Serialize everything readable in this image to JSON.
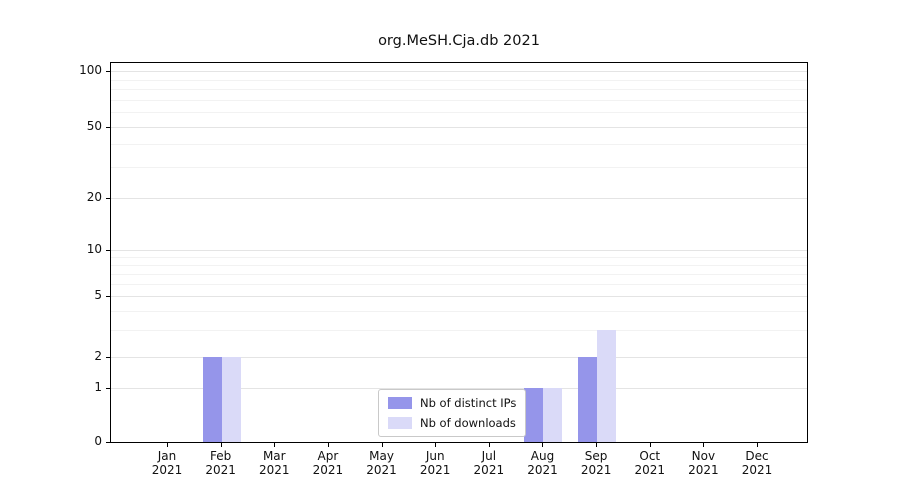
{
  "chart_data": {
    "type": "bar",
    "title": "org.MeSH.Cja.db 2021",
    "categories": [
      "Jan 2021",
      "Feb 2021",
      "Mar 2021",
      "Apr 2021",
      "May 2021",
      "Jun 2021",
      "Jul 2021",
      "Aug 2021",
      "Sep 2021",
      "Oct 2021",
      "Nov 2021",
      "Dec 2021"
    ],
    "series": [
      {
        "name": "Nb of distinct IPs",
        "color": "#9595ea",
        "values": [
          0,
          2,
          0,
          0,
          0,
          0,
          0,
          1,
          2,
          0,
          0,
          0
        ]
      },
      {
        "name": "Nb of downloads",
        "color": "#dadaf8",
        "values": [
          0,
          2,
          0,
          0,
          0,
          0,
          0,
          1,
          3,
          0,
          0,
          0
        ]
      }
    ],
    "yticks": [
      0,
      1,
      2,
      5,
      10,
      20,
      50,
      100
    ],
    "yscale": "symlog",
    "xlabel": "",
    "ylabel": "",
    "grid": "horizontal",
    "legend_position": "bottom-center"
  },
  "colors": {
    "grid_major": "#e4e4e4",
    "grid_minor": "#f2f2f2",
    "axis": "#000000",
    "legend_border": "#c9c9c9",
    "background": "#ffffff"
  }
}
